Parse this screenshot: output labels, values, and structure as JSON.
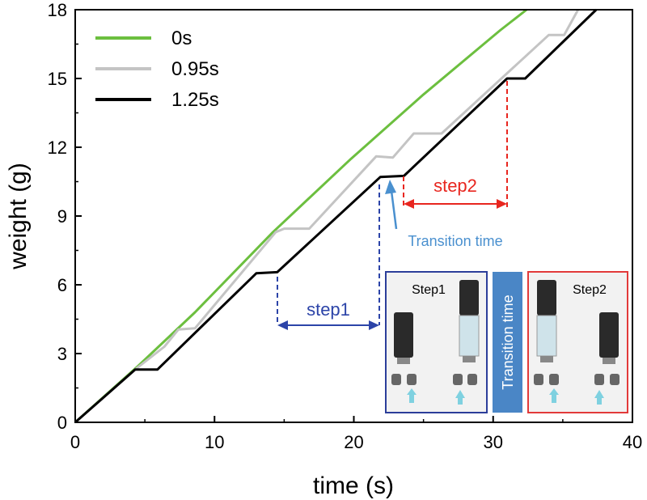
{
  "chart_data": {
    "type": "line",
    "xlabel": "time (s)",
    "ylabel": "weight (g)",
    "xlim": [
      0,
      40
    ],
    "ylim": [
      0,
      18
    ],
    "xticks": [
      0,
      10,
      20,
      30,
      40
    ],
    "yticks": [
      0,
      3,
      6,
      9,
      12,
      15,
      18
    ],
    "legend_position": "top-left",
    "series": [
      {
        "name": "0s",
        "color": "#6cbf3f",
        "x": [
          0,
          4.5,
          8.6,
          14.2,
          19.8,
          25.0,
          30.5,
          32.4
        ],
        "y": [
          0,
          2.45,
          4.8,
          8.3,
          11.5,
          14.3,
          17.1,
          18.0
        ]
      },
      {
        "name": "0.95s",
        "color": "#c4c4c4",
        "x": [
          0,
          4.5,
          6.4,
          7.4,
          8.6,
          14.4,
          15.0,
          16.8,
          21.6,
          22.8,
          24.3,
          26.3,
          34.0,
          35.1,
          36.1
        ],
        "y": [
          0,
          2.4,
          3.3,
          4.05,
          4.1,
          8.3,
          8.45,
          8.45,
          11.6,
          11.55,
          12.6,
          12.6,
          16.9,
          16.9,
          18.0
        ]
      },
      {
        "name": "1.25s",
        "color": "#000000",
        "x": [
          0,
          4.3,
          5.9,
          13.0,
          14.5,
          21.9,
          23.6,
          31.0,
          32.3,
          37.4
        ],
        "y": [
          0,
          2.3,
          2.3,
          6.5,
          6.55,
          10.7,
          10.75,
          15.0,
          15.0,
          18.0
        ]
      }
    ],
    "annotations": {
      "step1": "step1",
      "step2": "step2",
      "transition": "Transition time",
      "inset_step1": "Step1",
      "inset_step2": "Step2",
      "inset_transition": "Transition time"
    }
  }
}
